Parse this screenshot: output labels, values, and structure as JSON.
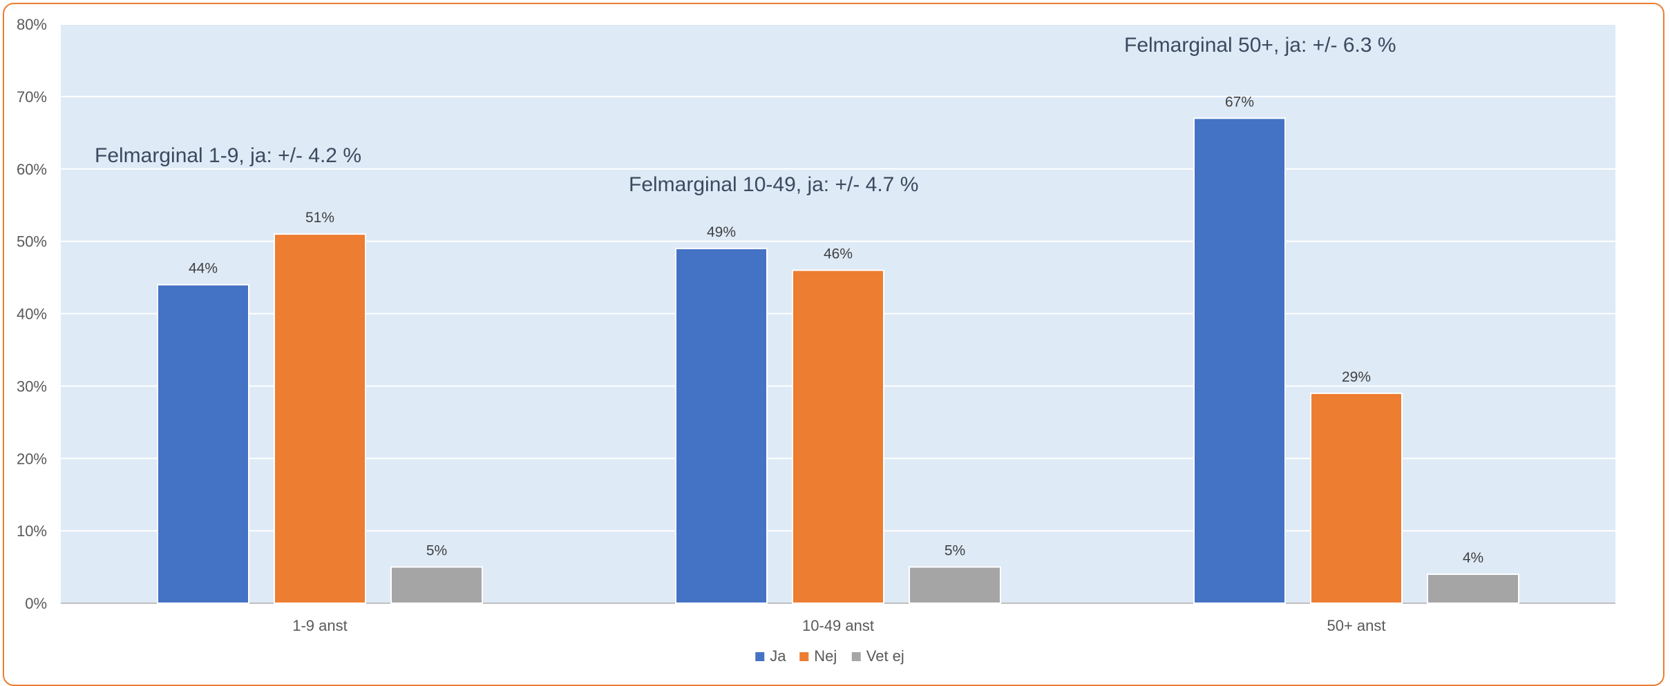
{
  "chart_data": {
    "type": "bar",
    "categories": [
      "1-9 anst",
      "10-49 anst",
      "50+ anst"
    ],
    "series": [
      {
        "name": "Ja",
        "color": "#4472C4",
        "values": [
          44,
          49,
          67
        ]
      },
      {
        "name": "Nej",
        "color": "#ED7D31",
        "values": [
          51,
          46,
          29
        ]
      },
      {
        "name": "Vet ej",
        "color": "#A5A5A5",
        "values": [
          5,
          5,
          4
        ]
      }
    ],
    "data_labels": [
      [
        "44%",
        "49%",
        "67%"
      ],
      [
        "51%",
        "46%",
        "29%"
      ],
      [
        "5%",
        "5%",
        "4%"
      ]
    ],
    "ylim": [
      0,
      80
    ],
    "yticks": [
      0,
      10,
      20,
      30,
      40,
      50,
      60,
      70,
      80
    ],
    "ytick_labels": [
      "0%",
      "10%",
      "20%",
      "30%",
      "40%",
      "50%",
      "60%",
      "70%",
      "80%"
    ],
    "grid": true,
    "legend_position": "bottom",
    "plot_background": "#DEEAF6",
    "frame_color": "#ED7D31",
    "annotations": [
      {
        "text": "Felmarginal 1-9, ja: +/- 4.2 %",
        "category": "1-9 anst"
      },
      {
        "text": "Felmarginal 10-49, ja: +/- 4.7 %",
        "category": "10-49 anst"
      },
      {
        "text": "Felmarginal 50+, ja: +/- 6.3 %",
        "category": "50+ anst"
      }
    ]
  }
}
